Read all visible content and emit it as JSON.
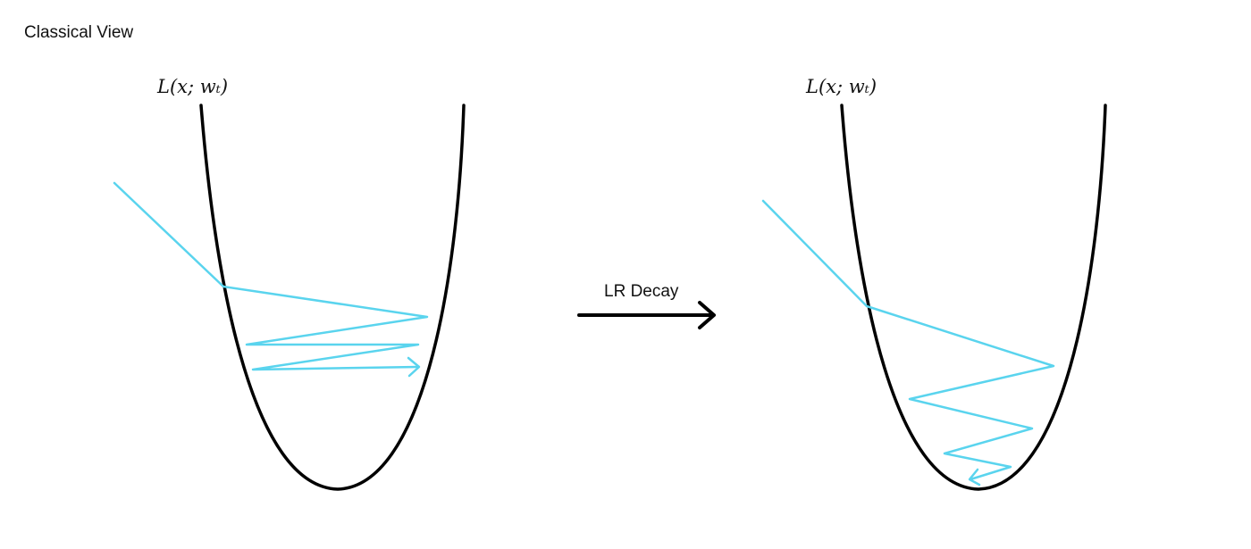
{
  "title": "Classical View",
  "left_panel": {
    "function_label": "L(x; w_t)",
    "function_label_display": "L(x; wₜ)"
  },
  "right_panel": {
    "function_label": "L(x; w_t)",
    "function_label_display": "L(x; wₜ)"
  },
  "transition": {
    "label": "LR Decay"
  },
  "colors": {
    "curve": "#000000",
    "trajectory": "#5ad4ee",
    "arrow": "#000000"
  }
}
